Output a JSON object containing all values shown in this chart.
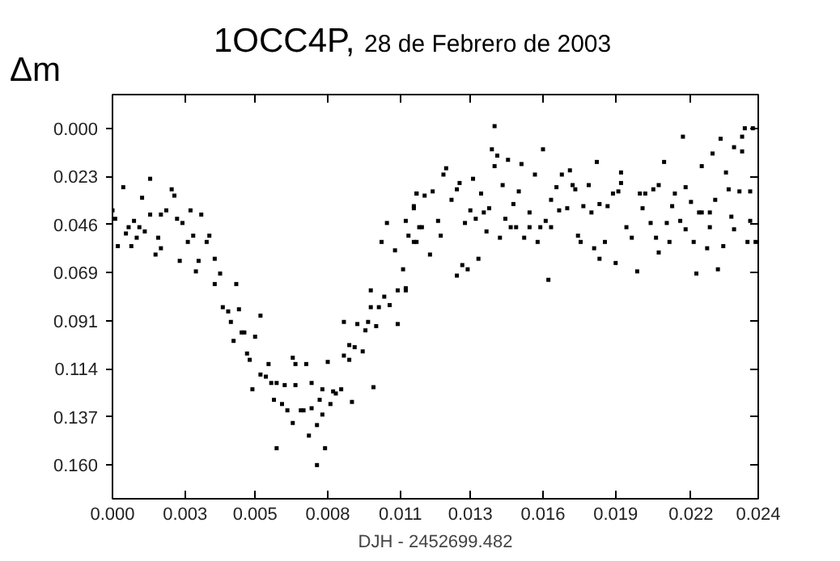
{
  "chart_data": {
    "type": "scatter",
    "title": "1OCC4P,",
    "subtitle": "28 de Febrero de 2003",
    "xlabel": "DJH - 2452699.482",
    "ylabel": "Δm",
    "color": "#000000",
    "marker": "square",
    "xlim": [
      0,
      0.024
    ],
    "ylim": [
      0.176,
      -0.016
    ],
    "xticks": [
      {
        "value": 0,
        "label": "0.000"
      },
      {
        "value": 0.0027,
        "label": "0.003"
      },
      {
        "value": 0.0053,
        "label": "0.005"
      },
      {
        "value": 0.008,
        "label": "0.008"
      },
      {
        "value": 0.0107,
        "label": "0.011"
      },
      {
        "value": 0.0133,
        "label": "0.013"
      },
      {
        "value": 0.016,
        "label": "0.016"
      },
      {
        "value": 0.0187,
        "label": "0.019"
      },
      {
        "value": 0.0215,
        "label": "0.022"
      },
      {
        "value": 0.024,
        "label": "0.024"
      }
    ],
    "yticks": [
      {
        "value": 0,
        "label": "0.000"
      },
      {
        "value": 0.0229,
        "label": "0.023"
      },
      {
        "value": 0.0457,
        "label": "0.046"
      },
      {
        "value": 0.0686,
        "label": "0.069"
      },
      {
        "value": 0.0914,
        "label": "0.091"
      },
      {
        "value": 0.1143,
        "label": "0.114"
      },
      {
        "value": 0.1371,
        "label": "0.137"
      },
      {
        "value": 0.16,
        "label": "0.160"
      }
    ],
    "x": [
      0.0,
      0.0001,
      0.0002,
      0.0004,
      0.0006,
      0.0005,
      0.0007,
      0.0008,
      0.0009,
      0.001,
      0.0011,
      0.0012,
      0.0014,
      0.0014,
      0.0016,
      0.0017,
      0.0018,
      0.0018,
      0.002,
      0.0022,
      0.0023,
      0.0025,
      0.0024,
      0.0026,
      0.0028,
      0.0029,
      0.003,
      0.0031,
      0.0033,
      0.0032,
      0.0035,
      0.0036,
      0.0038,
      0.0038,
      0.004,
      0.0046,
      0.0041,
      0.0043,
      0.0047,
      0.0044,
      0.0055,
      0.0048,
      0.0049,
      0.0045,
      0.0053,
      0.005,
      0.0051,
      0.0052,
      0.0055,
      0.0057,
      0.0058,
      0.0059,
      0.006,
      0.0061,
      0.0063,
      0.0064,
      0.0065,
      0.0061,
      0.0067,
      0.0068,
      0.0067,
      0.0068,
      0.007,
      0.0072,
      0.0071,
      0.0073,
      0.0074,
      0.0074,
      0.0076,
      0.0076,
      0.0077,
      0.0078,
      0.0078,
      0.0079,
      0.008,
      0.0081,
      0.0082,
      0.0083,
      0.0085,
      0.0086,
      0.0086,
      0.0088,
      0.0089,
      0.0088,
      0.009,
      0.0091,
      0.0093,
      0.0094,
      0.0095,
      0.0096,
      0.0097,
      0.0098,
      0.0099,
      0.0101,
      0.0103,
      0.0106,
      0.0096,
      0.0106,
      0.0109,
      0.0108,
      0.0105,
      0.01,
      0.0102,
      0.0109,
      0.0112,
      0.0113,
      0.0114,
      0.011,
      0.0112,
      0.0109,
      0.0112,
      0.0113,
      0.0113,
      0.0115,
      0.0116,
      0.0118,
      0.0119,
      0.0121,
      0.0122,
      0.0124,
      0.0123,
      0.0126,
      0.0128,
      0.0128,
      0.0129,
      0.013,
      0.0131,
      0.0132,
      0.0133,
      0.0134,
      0.0135,
      0.0136,
      0.0137,
      0.0138,
      0.0139,
      0.014,
      0.0141,
      0.0142,
      0.0142,
      0.0143,
      0.0144,
      0.0145,
      0.0146,
      0.0147,
      0.0148,
      0.0149,
      0.015,
      0.0151,
      0.0152,
      0.0153,
      0.0155,
      0.0155,
      0.0157,
      0.0158,
      0.0159,
      0.016,
      0.0161,
      0.0162,
      0.0163,
      0.0163,
      0.0165,
      0.0166,
      0.0167,
      0.0169,
      0.017,
      0.0171,
      0.0172,
      0.0173,
      0.0174,
      0.0175,
      0.0177,
      0.0178,
      0.0179,
      0.018,
      0.0181,
      0.0181,
      0.0183,
      0.0184,
      0.0186,
      0.0187,
      0.0188,
      0.0189,
      0.0189,
      0.0191,
      0.0193,
      0.0195,
      0.0196,
      0.0197,
      0.0198,
      0.02,
      0.0201,
      0.0202,
      0.0203,
      0.0203,
      0.0205,
      0.0206,
      0.0207,
      0.0208,
      0.0209,
      0.0211,
      0.0212,
      0.0213,
      0.0213,
      0.0215,
      0.0216,
      0.0217,
      0.0218,
      0.0219,
      0.0219,
      0.0221,
      0.0222,
      0.0222,
      0.0223,
      0.0224,
      0.0225,
      0.0226,
      0.0227,
      0.0228,
      0.0229,
      0.023,
      0.0231,
      0.0231,
      0.0233,
      0.0234,
      0.0234,
      0.0235,
      0.0236,
      0.0237,
      0.0237,
      0.0238,
      0.0239
    ],
    "values": [
      0.039,
      0.043,
      0.056,
      0.028,
      0.047,
      0.05,
      0.056,
      0.044,
      0.052,
      0.047,
      0.033,
      0.049,
      0.041,
      0.024,
      0.06,
      0.052,
      0.041,
      0.057,
      0.039,
      0.029,
      0.032,
      0.063,
      0.043,
      0.045,
      0.054,
      0.039,
      0.051,
      0.068,
      0.041,
      0.063,
      0.054,
      0.051,
      0.062,
      0.074,
      0.069,
      0.074,
      0.085,
      0.087,
      0.086,
      0.092,
      0.089,
      0.097,
      0.097,
      0.101,
      0.099,
      0.107,
      0.11,
      0.124,
      0.117,
      0.118,
      0.112,
      0.121,
      0.129,
      0.121,
      0.131,
      0.122,
      0.134,
      0.152,
      0.109,
      0.112,
      0.14,
      0.122,
      0.134,
      0.112,
      0.134,
      0.146,
      0.121,
      0.133,
      0.141,
      0.16,
      0.129,
      0.136,
      0.124,
      0.152,
      0.111,
      0.131,
      0.125,
      0.126,
      0.124,
      0.092,
      0.108,
      0.11,
      0.13,
      0.103,
      0.104,
      0.093,
      0.106,
      0.096,
      0.092,
      0.085,
      0.123,
      0.094,
      0.085,
      0.08,
      0.084,
      0.093,
      0.077,
      0.077,
      0.077,
      0.067,
      0.058,
      0.054,
      0.045,
      0.044,
      0.038,
      0.031,
      0.047,
      0.051,
      0.054,
      0.076,
      0.037,
      0.031,
      0.054,
      0.047,
      0.032,
      0.06,
      0.03,
      0.044,
      0.051,
      0.019,
      0.022,
      0.034,
      0.029,
      0.07,
      0.026,
      0.065,
      0.045,
      0.067,
      0.039,
      0.024,
      0.043,
      0.062,
      0.031,
      0.04,
      0.049,
      0.038,
      0.01,
      0.018,
      -0.001,
      0.013,
      0.052,
      0.027,
      0.043,
      0.015,
      0.047,
      0.036,
      0.047,
      0.03,
      0.017,
      0.052,
      0.04,
      0.047,
      0.022,
      0.054,
      0.047,
      0.01,
      0.044,
      0.072,
      0.047,
      0.034,
      0.028,
      0.039,
      0.022,
      0.038,
      0.02,
      0.027,
      0.029,
      0.051,
      0.054,
      0.037,
      0.027,
      0.04,
      0.057,
      0.016,
      0.036,
      0.062,
      0.054,
      0.037,
      0.031,
      0.064,
      0.03,
      0.021,
      0.026,
      0.047,
      0.052,
      0.068,
      0.031,
      0.038,
      0.031,
      0.045,
      0.029,
      0.052,
      0.027,
      0.059,
      0.016,
      0.045,
      0.054,
      0.037,
      0.031,
      0.044,
      0.004,
      0.048,
      0.028,
      0.035,
      0.054,
      0.069,
      0.04,
      0.018,
      0.04,
      0.057,
      0.047,
      0.04,
      0.012,
      0.034,
      0.067,
      0.005,
      0.056,
      0.021,
      0.029,
      0.042,
      0.009,
      0.048,
      0.03,
      0.011,
      0.004,
      0.0,
      0.054,
      0.044,
      0.03,
      0.0,
      0.054
    ]
  }
}
